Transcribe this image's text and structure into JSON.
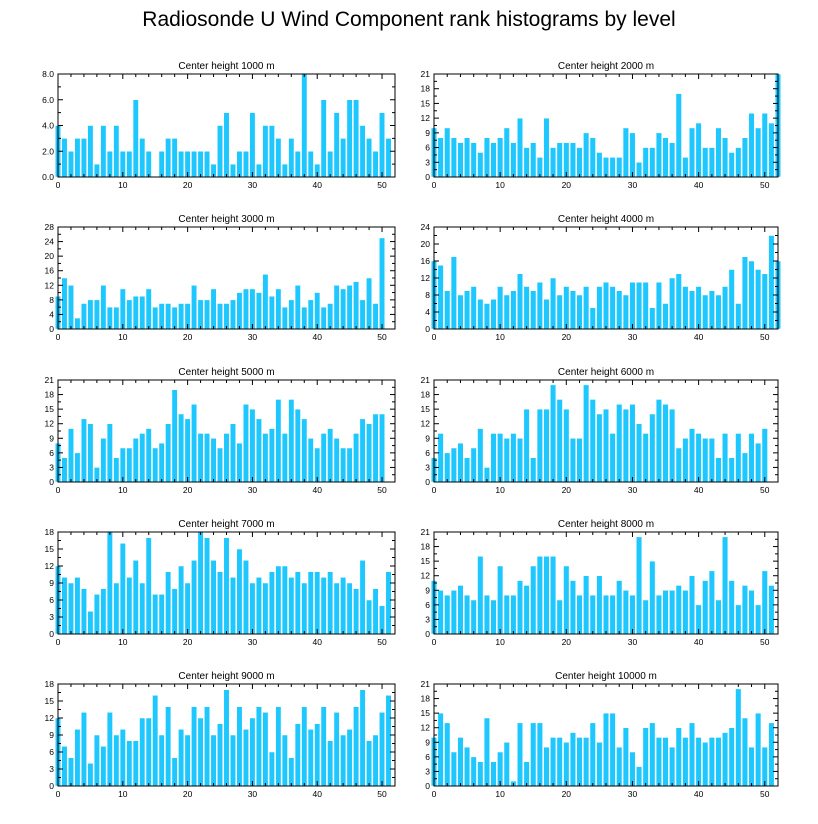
{
  "title": "Radiosonde U Wind Component rank histograms by level",
  "colors": {
    "bar": "#1ec8ff",
    "bar_edge": "#ffffff",
    "axis": "#000000"
  },
  "chart_data": [
    {
      "type": "bar",
      "title": "Center height 1000 m",
      "xlim": [
        0,
        52
      ],
      "ylim": [
        0,
        8
      ],
      "xticks": [
        0,
        10,
        20,
        30,
        40,
        50
      ],
      "yticks": [
        0,
        2,
        4,
        6,
        8
      ],
      "ytick_labels": [
        "0.0",
        "2.0",
        "4.0",
        "6.0",
        "8.0"
      ],
      "values": [
        4,
        3,
        2,
        3,
        3,
        4,
        1,
        4,
        2,
        4,
        2,
        2,
        6,
        3,
        2,
        0,
        2,
        3,
        3,
        2,
        2,
        2,
        2,
        2,
        1,
        4,
        5,
        1,
        2,
        2,
        5,
        1,
        4,
        4,
        3,
        1,
        3,
        2,
        8,
        2,
        1,
        6,
        2,
        5,
        3,
        6,
        6,
        4,
        3,
        2,
        5,
        3
      ]
    },
    {
      "type": "bar",
      "title": "Center height 2000 m",
      "xlim": [
        0,
        52
      ],
      "ylim": [
        0,
        21
      ],
      "xticks": [
        0,
        10,
        20,
        30,
        40,
        50
      ],
      "yticks": [
        0,
        3,
        6,
        9,
        12,
        15,
        18,
        21
      ],
      "ytick_labels": [
        "0",
        "3",
        "6",
        "9",
        "12",
        "15",
        "18",
        "21"
      ],
      "values": [
        10,
        8,
        10,
        8,
        7,
        8,
        7,
        5,
        8,
        7,
        8,
        10,
        7,
        12,
        6,
        7,
        4,
        12,
        6,
        7,
        7,
        7,
        6,
        9,
        8,
        5,
        4,
        4,
        4,
        10,
        9,
        3,
        6,
        6,
        9,
        8,
        7,
        17,
        4,
        10,
        11,
        6,
        6,
        10,
        8,
        5,
        6,
        8,
        13,
        10,
        13,
        11,
        21
      ]
    },
    {
      "type": "bar",
      "title": "Center height 3000 m",
      "xlim": [
        0,
        52
      ],
      "ylim": [
        0,
        28
      ],
      "xticks": [
        0,
        10,
        20,
        30,
        40,
        50
      ],
      "yticks": [
        0,
        4,
        8,
        12,
        16,
        20,
        24,
        28
      ],
      "ytick_labels": [
        "0",
        "4",
        "8",
        "12",
        "16",
        "20",
        "24",
        "28"
      ],
      "values": [
        9,
        14,
        12,
        3,
        7,
        8,
        8,
        12,
        6,
        6,
        11,
        8,
        9,
        9,
        11,
        6,
        7,
        7,
        6,
        7,
        7,
        12,
        8,
        8,
        11,
        7,
        7,
        8,
        10,
        11,
        11,
        10,
        15,
        9,
        11,
        6,
        8,
        12,
        6,
        8,
        10,
        6,
        7,
        12,
        11,
        12,
        13,
        8,
        14,
        7,
        25
      ]
    },
    {
      "type": "bar",
      "title": "Center height 4000 m",
      "xlim": [
        0,
        52
      ],
      "ylim": [
        0,
        24
      ],
      "xticks": [
        0,
        10,
        20,
        30,
        40,
        50
      ],
      "yticks": [
        0,
        4,
        8,
        12,
        16,
        20,
        24
      ],
      "ytick_labels": [
        "0",
        "4",
        "8",
        "12",
        "16",
        "20",
        "24"
      ],
      "values": [
        16,
        15,
        9,
        17,
        8,
        9,
        10,
        7,
        6,
        7,
        10,
        8,
        9,
        13,
        10,
        9,
        11,
        7,
        12,
        8,
        10,
        9,
        8,
        10,
        5,
        10,
        11,
        10,
        9,
        8,
        11,
        11,
        11,
        5,
        11,
        6,
        12,
        13,
        10,
        9,
        10,
        8,
        9,
        8,
        10,
        14,
        6,
        17,
        16,
        14,
        13,
        22,
        16
      ]
    },
    {
      "type": "bar",
      "title": "Center height 5000 m",
      "xlim": [
        0,
        52
      ],
      "ylim": [
        0,
        21
      ],
      "xticks": [
        0,
        10,
        20,
        30,
        40,
        50
      ],
      "yticks": [
        0,
        3,
        6,
        9,
        12,
        15,
        18,
        21
      ],
      "ytick_labels": [
        "0",
        "3",
        "6",
        "9",
        "12",
        "15",
        "18",
        "21"
      ],
      "values": [
        8,
        5,
        11,
        6,
        13,
        12,
        3,
        9,
        12,
        5,
        7,
        7,
        9,
        10,
        11,
        7,
        8,
        12,
        19,
        14,
        13,
        16,
        10,
        10,
        9,
        7,
        10,
        12,
        8,
        16,
        15,
        13,
        10,
        11,
        17,
        10,
        17,
        15,
        13,
        9,
        7,
        10,
        11,
        9,
        7,
        7,
        10,
        13,
        12,
        14,
        14
      ]
    },
    {
      "type": "bar",
      "title": "Center height 6000 m",
      "xlim": [
        0,
        52
      ],
      "ylim": [
        0,
        21
      ],
      "xticks": [
        0,
        10,
        20,
        30,
        40,
        50
      ],
      "yticks": [
        0,
        3,
        6,
        9,
        12,
        15,
        18,
        21
      ],
      "ytick_labels": [
        "0",
        "3",
        "6",
        "9",
        "12",
        "15",
        "18",
        "21"
      ],
      "values": [
        5,
        10,
        6,
        7,
        8,
        5,
        7,
        11,
        3,
        10,
        10,
        9,
        10,
        9,
        15,
        5,
        15,
        15,
        20,
        17,
        15,
        9,
        9,
        20,
        17,
        14,
        15,
        10,
        16,
        15,
        16,
        12,
        10,
        14,
        17,
        16,
        15,
        7,
        9,
        11,
        10,
        9,
        9,
        5,
        10,
        5,
        10,
        6,
        10,
        8,
        11
      ]
    },
    {
      "type": "bar",
      "title": "Center height 7000 m",
      "xlim": [
        0,
        52
      ],
      "ylim": [
        0,
        18
      ],
      "xticks": [
        0,
        10,
        20,
        30,
        40,
        50
      ],
      "yticks": [
        0,
        3,
        6,
        9,
        12,
        15,
        18
      ],
      "ytick_labels": [
        "0",
        "3",
        "6",
        "9",
        "12",
        "15",
        "18"
      ],
      "values": [
        12,
        10,
        9,
        10,
        8,
        4,
        7,
        8,
        18,
        9,
        16,
        10,
        13,
        9,
        17,
        7,
        7,
        11,
        8,
        12,
        9,
        13,
        18,
        17,
        13,
        11,
        17,
        10,
        15,
        13,
        9,
        10,
        9,
        11,
        12,
        12,
        10,
        11,
        9,
        11,
        11,
        10,
        11,
        9,
        10,
        9,
        8,
        13,
        6,
        8,
        5,
        11
      ]
    },
    {
      "type": "bar",
      "title": "Center height 8000 m",
      "xlim": [
        0,
        52
      ],
      "ylim": [
        0,
        21
      ],
      "xticks": [
        0,
        10,
        20,
        30,
        40,
        50
      ],
      "yticks": [
        0,
        3,
        6,
        9,
        12,
        15,
        18,
        21
      ],
      "ytick_labels": [
        "0",
        "3",
        "6",
        "9",
        "12",
        "15",
        "18",
        "21"
      ],
      "values": [
        11,
        9,
        8,
        9,
        10,
        8,
        7,
        16,
        8,
        7,
        14,
        8,
        8,
        11,
        10,
        14,
        16,
        16,
        16,
        7,
        14,
        11,
        8,
        12,
        8,
        12,
        8,
        8,
        11,
        9,
        8,
        20,
        7,
        15,
        8,
        9,
        9,
        10,
        9,
        12,
        6,
        11,
        13,
        7,
        20,
        11,
        6,
        10,
        9,
        6,
        13,
        10
      ]
    },
    {
      "type": "bar",
      "title": "Center height 9000 m",
      "xlim": [
        0,
        52
      ],
      "ylim": [
        0,
        18
      ],
      "xticks": [
        0,
        10,
        20,
        30,
        40,
        50
      ],
      "yticks": [
        0,
        3,
        6,
        9,
        12,
        15,
        18
      ],
      "ytick_labels": [
        "0",
        "3",
        "6",
        "9",
        "12",
        "15",
        "18"
      ],
      "values": [
        12,
        7,
        5,
        10,
        13,
        4,
        9,
        7,
        13,
        9,
        10,
        8,
        8,
        12,
        12,
        16,
        9,
        14,
        5,
        10,
        9,
        14,
        12,
        14,
        9,
        11,
        17,
        9,
        14,
        10,
        12,
        14,
        13,
        6,
        14,
        9,
        5,
        11,
        14,
        10,
        11,
        14,
        8,
        13,
        9,
        10,
        14,
        17,
        8,
        9,
        13,
        16
      ]
    },
    {
      "type": "bar",
      "title": "Center height 10000 m",
      "xlim": [
        0,
        52
      ],
      "ylim": [
        0,
        21
      ],
      "xticks": [
        0,
        10,
        20,
        30,
        40,
        50
      ],
      "yticks": [
        0,
        3,
        6,
        9,
        12,
        15,
        18,
        21
      ],
      "ytick_labels": [
        "0",
        "3",
        "6",
        "9",
        "12",
        "15",
        "18",
        "21"
      ],
      "values": [
        10,
        15,
        13,
        7,
        10,
        8,
        6,
        5,
        14,
        5,
        7,
        9,
        1,
        13,
        5,
        13,
        13,
        8,
        10,
        10,
        9,
        11,
        10,
        10,
        13,
        9,
        15,
        15,
        8,
        12,
        7,
        4,
        12,
        13,
        10,
        10,
        8,
        12,
        10,
        13,
        10,
        9,
        10,
        10,
        11,
        12,
        20,
        14,
        8,
        15,
        8,
        13
      ]
    }
  ]
}
